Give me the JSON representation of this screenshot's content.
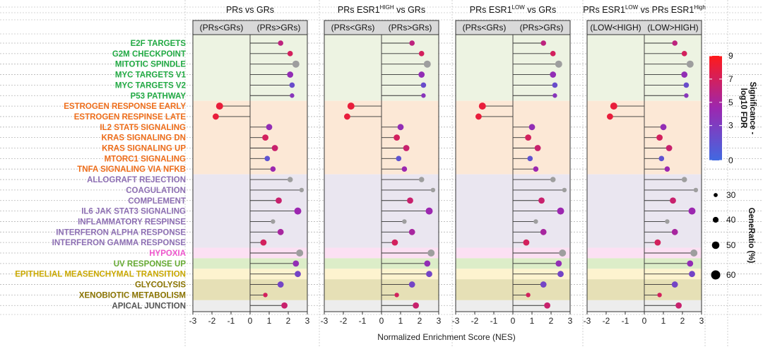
{
  "chart_data": {
    "type": "lollipop",
    "xlabel": "Normalized Enrichment Score (NES)",
    "xlim": [
      -3,
      3
    ],
    "xticks": [
      -3,
      -2,
      -1,
      0,
      1,
      2,
      3
    ],
    "tick_labels": [
      "-3",
      "-2",
      "-1",
      "0",
      "1",
      "2",
      "3"
    ],
    "panels": [
      {
        "title": "PRs vs GRs",
        "left_label": "(PRs<GRs)",
        "right_label": "(PRs>GRs)"
      },
      {
        "title": "PRs ESR1",
        "title_sup": "HIGH",
        "title_end": " vs GRs",
        "left_label": "(PRs<GRs)",
        "right_label": "(PRs>GRs)"
      },
      {
        "title": "PRs ESR1",
        "title_sup": "LOW",
        "title_end": " vs GRs",
        "left_label": "(PRs<GRs)",
        "right_label": "(PRs>GRs)"
      },
      {
        "title": "PRs ESR1",
        "title_sup": "LOW",
        "title_mid": " vs PRs ESR1",
        "title_sup2": "High",
        "left_label": "(LOW<HIGH)",
        "right_label": "(LOW>HIGH)"
      }
    ],
    "terms": [
      {
        "name": "E2F TARGETS",
        "group": "g1",
        "nes": 1.6,
        "fdr": 6.0,
        "ratio": 40
      },
      {
        "name": "G2M CHECKPOINT",
        "group": "g1",
        "nes": 2.1,
        "fdr": 7.0,
        "ratio": 40
      },
      {
        "name": "MITOTIC SPINDLE",
        "group": "g1",
        "nes": 2.4,
        "fdr": 0,
        "ratio": 50
      },
      {
        "name": "MYC TARGETS V1",
        "group": "g1",
        "nes": 2.1,
        "fdr": 4.0,
        "ratio": 45
      },
      {
        "name": "MYC TARGETS V2",
        "group": "g1",
        "nes": 2.2,
        "fdr": 2.0,
        "ratio": 40
      },
      {
        "name": "P53 PATHWAY",
        "group": "g1",
        "nes": 2.2,
        "fdr": 3.5,
        "ratio": 35
      },
      {
        "name": "ESTROGEN RESPONSE EARLY",
        "group": "g2",
        "nes": -1.6,
        "fdr": 8.0,
        "ratio": 50
      },
      {
        "name": "ESTROGEN RESPINSE LATE",
        "group": "g2",
        "nes": -1.8,
        "fdr": 8.0,
        "ratio": 45
      },
      {
        "name": "IL2 STAT5 SIGNALING",
        "group": "g2",
        "nes": 1.0,
        "fdr": 4.0,
        "ratio": 45
      },
      {
        "name": "KRAS SIGNALING DN",
        "group": "g2",
        "nes": 0.8,
        "fdr": 7.0,
        "ratio": 45
      },
      {
        "name": "KRAS SIGNALING UP",
        "group": "g2",
        "nes": 1.3,
        "fdr": 6.5,
        "ratio": 45
      },
      {
        "name": "MTORC1 SIGNALING",
        "group": "g2",
        "nes": 0.9,
        "fdr": 1.5,
        "ratio": 40
      },
      {
        "name": "TNFA SIGNALING VIA NFKB",
        "group": "g2",
        "nes": 1.2,
        "fdr": 4.5,
        "ratio": 40
      },
      {
        "name": "ALLOGRAFT REJECTION",
        "group": "g3",
        "nes": 2.1,
        "fdr": 0,
        "ratio": 40
      },
      {
        "name": "COAGULATION",
        "group": "g3",
        "nes": 2.7,
        "fdr": 0,
        "ratio": 35
      },
      {
        "name": "COMPLEMENT",
        "group": "g3",
        "nes": 1.5,
        "fdr": 6.5,
        "ratio": 45
      },
      {
        "name": "IL6 JAK STAT3 SIGNALING",
        "group": "g3",
        "nes": 2.5,
        "fdr": 4.5,
        "ratio": 50
      },
      {
        "name": "INFLAMMATORY RESPINSE",
        "group": "g3",
        "nes": 1.2,
        "fdr": 0,
        "ratio": 35
      },
      {
        "name": "INTERFERON ALPHA RESPONSE",
        "group": "g3",
        "nes": 1.6,
        "fdr": 5.0,
        "ratio": 45
      },
      {
        "name": "INTERFERON GAMMA RESPONSE",
        "group": "g3",
        "nes": 0.7,
        "fdr": 7.0,
        "ratio": 45
      },
      {
        "name": "HYPOXIA",
        "group": "g4",
        "nes": 2.6,
        "fdr": 0,
        "ratio": 50
      },
      {
        "name": "UV RESPONSE UP",
        "group": "g5",
        "nes": 2.4,
        "fdr": 4.0,
        "ratio": 45
      },
      {
        "name": "EPITHELIAL MEASENCHYMAL TRANSITION",
        "group": "g6",
        "nes": 2.5,
        "fdr": 2.5,
        "ratio": 45
      },
      {
        "name": "GLYCOLYSIS",
        "group": "g7",
        "nes": 1.6,
        "fdr": 2.5,
        "ratio": 45
      },
      {
        "name": "XENOBIOTIC METABOLISM",
        "group": "g7",
        "nes": 0.8,
        "fdr": 7.0,
        "ratio": 35
      },
      {
        "name": "APICAL JUNCTION",
        "group": "g8",
        "nes": 1.8,
        "fdr": 6.5,
        "ratio": 45
      }
    ],
    "groups": {
      "g1": {
        "label_color": "#22aa44",
        "band_color": "#edf3e2"
      },
      "g2": {
        "label_color": "#ee6d1a",
        "band_color": "#fce8d6"
      },
      "g3": {
        "label_color": "#8d6fb3",
        "band_color": "#eae6f0"
      },
      "g4": {
        "label_color": "#ee55cc",
        "band_color": "#fce0f3"
      },
      "g5": {
        "label_color": "#66aa33",
        "band_color": "#dcedc8"
      },
      "g6": {
        "label_color": "#c9a800",
        "band_color": "#fdf3cf"
      },
      "g7": {
        "label_color": "#8a7300",
        "band_color": "#e6e0b6"
      },
      "g8": {
        "label_color": "#555555",
        "band_color": "#ededed"
      }
    },
    "color_legend": {
      "title": "Significance -",
      "title2": "log10 FDR",
      "ticks": [
        0,
        3,
        5,
        7,
        9
      ],
      "tick_labels": [
        "0",
        "3",
        "5",
        "7",
        "9"
      ],
      "range": [
        0,
        9
      ],
      "colors": [
        "#4169e1",
        "#9c27b0",
        "#ff1a1a"
      ],
      "nonsignificant_color": "#9e9e9e"
    },
    "size_legend": {
      "title": "GeneRatio (%)",
      "values": [
        30,
        40,
        50,
        60
      ],
      "labels": [
        "30",
        "40",
        "50",
        "60"
      ]
    }
  }
}
